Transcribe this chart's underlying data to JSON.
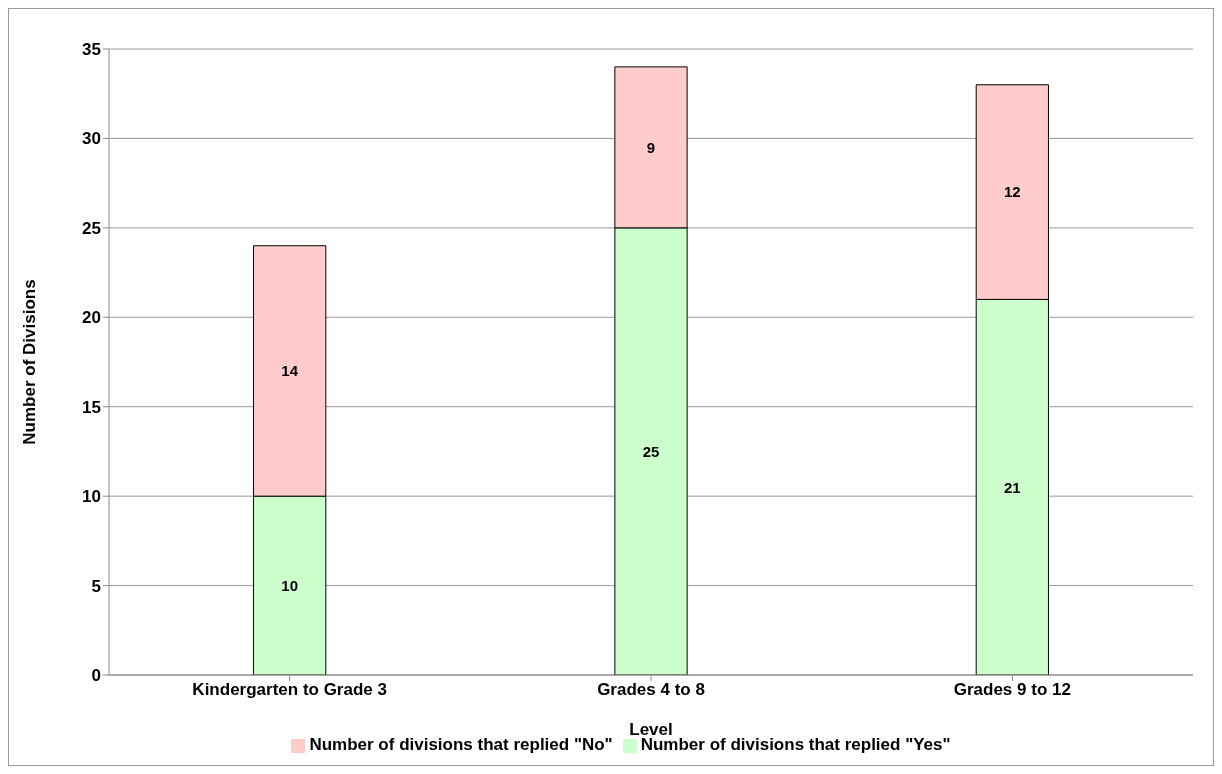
{
  "chart_data": {
    "type": "bar",
    "stacked": true,
    "xlabel": "Level",
    "ylabel": "Number of Divisions",
    "categories": [
      "Kindergarten to Grade 3",
      "Grades 4 to 8",
      "Grades 9 to 12"
    ],
    "series": [
      {
        "name": "Number of divisions that replied \"Yes\"",
        "color": "#ccffcc",
        "values": [
          10,
          25,
          21
        ]
      },
      {
        "name": "Number of divisions that replied \"No\"",
        "color": "#ffcccc",
        "values": [
          14,
          9,
          12
        ]
      }
    ],
    "ylim": [
      0,
      35
    ],
    "yticks": [
      0,
      5,
      10,
      15,
      20,
      25,
      30,
      35
    ],
    "grid": "y",
    "legend": "bottom",
    "data_labels": true
  }
}
